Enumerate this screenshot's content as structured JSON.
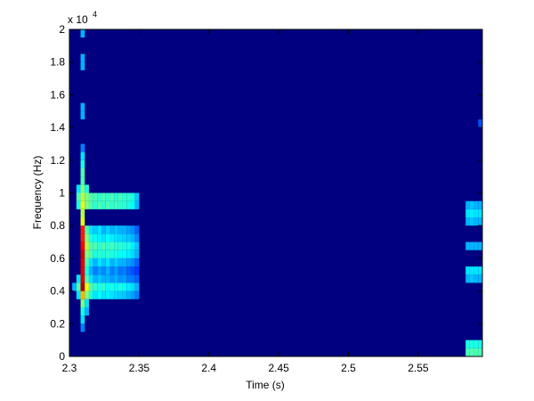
{
  "chart_data": {
    "type": "spectrogram",
    "xlabel": "Time (s)",
    "ylabel": "Frequency (Hz)",
    "y_exponent_base": "x 10",
    "y_exponent": "4",
    "xlim": [
      2.3,
      2.596
    ],
    "xticks": [
      2.3,
      2.35,
      2.4,
      2.45,
      2.5,
      2.55
    ],
    "ylim": [
      0,
      20000
    ],
    "yticks": [
      0,
      {
        "value": 2000,
        "label": "0.2"
      },
      {
        "value": 4000,
        "label": "0.4"
      },
      {
        "value": 6000,
        "label": "0.6"
      },
      {
        "value": 8000,
        "label": "0.8"
      },
      {
        "value": 10000,
        "label": "1"
      },
      {
        "value": 12000,
        "label": "1.2"
      },
      {
        "value": 14000,
        "label": "1.4"
      },
      {
        "value": 16000,
        "label": "1.6"
      },
      {
        "value": 18000,
        "label": "1.8"
      },
      {
        "value": 20000,
        "label": "2"
      }
    ],
    "zlim": [
      0,
      1
    ],
    "colormap": "jet",
    "columns": [
      {
        "x": 2.3035,
        "y": [
          4000
        ],
        "values": [
          0.3
        ]
      },
      {
        "x": 2.3065,
        "y": [
          3500,
          4000,
          4500,
          9000,
          9500,
          10000
        ],
        "values": [
          0.35,
          0.45,
          0.35,
          0.4,
          0.45,
          0.35
        ]
      },
      {
        "x": 2.3095,
        "y": [
          1500,
          2000,
          2500,
          3000,
          3500,
          4000,
          4500,
          5000,
          5500,
          6000,
          6500,
          7000,
          7500,
          8000,
          8500,
          9000,
          9500,
          10000,
          10500,
          11000,
          11500,
          12000,
          12500,
          14500,
          15000,
          17500,
          18000,
          19500
        ],
        "values": [
          0.25,
          0.35,
          0.4,
          0.5,
          0.7,
          0.95,
          0.9,
          0.9,
          0.9,
          0.92,
          0.88,
          0.85,
          0.85,
          0.6,
          0.55,
          0.6,
          0.55,
          0.5,
          0.45,
          0.45,
          0.4,
          0.35,
          0.25,
          0.3,
          0.3,
          0.3,
          0.3,
          0.3
        ]
      },
      {
        "x": 2.3125,
        "y": [
          2500,
          3000,
          3500,
          4000,
          4500,
          5000,
          5500,
          6000,
          6500,
          7000,
          7500,
          9000,
          9500,
          10000
        ],
        "values": [
          0.3,
          0.35,
          0.5,
          0.6,
          0.45,
          0.4,
          0.45,
          0.5,
          0.55,
          0.5,
          0.45,
          0.5,
          0.5,
          0.4
        ]
      },
      {
        "x": 2.3155,
        "y": [
          3500,
          4000,
          4500,
          5000,
          5500,
          6000,
          6500,
          7000,
          7500,
          9000,
          9500
        ],
        "values": [
          0.4,
          0.45,
          0.35,
          0.3,
          0.35,
          0.45,
          0.45,
          0.4,
          0.35,
          0.45,
          0.45
        ]
      },
      {
        "x": 2.3185,
        "y": [
          3500,
          4000,
          4500,
          5000,
          5500,
          6000,
          6500,
          7000,
          7500,
          9000,
          9500
        ],
        "values": [
          0.35,
          0.42,
          0.3,
          0.25,
          0.3,
          0.4,
          0.45,
          0.38,
          0.32,
          0.42,
          0.45
        ]
      },
      {
        "x": 2.3215,
        "y": [
          3500,
          4000,
          4500,
          5000,
          5500,
          6000,
          6500,
          7000,
          7500,
          9000,
          9500
        ],
        "values": [
          0.38,
          0.4,
          0.32,
          0.28,
          0.35,
          0.42,
          0.42,
          0.36,
          0.35,
          0.45,
          0.42
        ]
      },
      {
        "x": 2.3245,
        "y": [
          3500,
          4000,
          4500,
          5000,
          5500,
          6000,
          6500,
          7000,
          7500,
          9000,
          9500
        ],
        "values": [
          0.35,
          0.42,
          0.3,
          0.26,
          0.32,
          0.4,
          0.45,
          0.35,
          0.3,
          0.42,
          0.45
        ]
      },
      {
        "x": 2.3275,
        "y": [
          3500,
          4000,
          4500,
          5000,
          5500,
          6000,
          6500,
          7000,
          7500,
          9000,
          9500
        ],
        "values": [
          0.36,
          0.38,
          0.3,
          0.3,
          0.35,
          0.42,
          0.42,
          0.38,
          0.33,
          0.45,
          0.42
        ]
      },
      {
        "x": 2.3305,
        "y": [
          3500,
          4000,
          4500,
          5000,
          5500,
          6000,
          6500,
          7000,
          7500,
          9000,
          9500
        ],
        "values": [
          0.35,
          0.4,
          0.28,
          0.25,
          0.3,
          0.4,
          0.44,
          0.36,
          0.3,
          0.42,
          0.45
        ]
      },
      {
        "x": 2.3335,
        "y": [
          3500,
          4000,
          4500,
          5000,
          5500,
          6000,
          6500,
          7000,
          7500,
          9000,
          9500
        ],
        "values": [
          0.34,
          0.38,
          0.3,
          0.28,
          0.33,
          0.4,
          0.42,
          0.35,
          0.32,
          0.44,
          0.42
        ]
      },
      {
        "x": 2.3365,
        "y": [
          3500,
          4000,
          4500,
          5000,
          5500,
          6000,
          6500,
          7000,
          7500,
          9000,
          9500
        ],
        "values": [
          0.33,
          0.4,
          0.27,
          0.24,
          0.3,
          0.38,
          0.42,
          0.34,
          0.3,
          0.42,
          0.44
        ]
      },
      {
        "x": 2.3395,
        "y": [
          3500,
          4000,
          4500,
          5000,
          5500,
          6000,
          6500,
          7000,
          7500,
          9000,
          9500
        ],
        "values": [
          0.32,
          0.38,
          0.28,
          0.25,
          0.3,
          0.38,
          0.4,
          0.33,
          0.3,
          0.42,
          0.42
        ]
      },
      {
        "x": 2.3425,
        "y": [
          3500,
          4000,
          4500,
          5000,
          5500,
          6000,
          6500,
          7000,
          7500,
          9000,
          9500
        ],
        "values": [
          0.3,
          0.36,
          0.25,
          0.22,
          0.28,
          0.36,
          0.4,
          0.32,
          0.28,
          0.4,
          0.42
        ]
      },
      {
        "x": 2.3455,
        "y": [
          3500,
          4000,
          4500,
          5000,
          5500,
          6000,
          6500,
          7000,
          7500,
          9000,
          9500
        ],
        "values": [
          0.28,
          0.34,
          0.24,
          0.2,
          0.26,
          0.34,
          0.36,
          0.3,
          0.26,
          0.38,
          0.4
        ]
      },
      {
        "x": 2.3485,
        "y": [
          3500,
          4000,
          4500,
          5000,
          5500,
          6000,
          6500,
          7000,
          7500,
          9000,
          9500
        ],
        "values": [
          0.25,
          0.3,
          0.22,
          0.18,
          0.22,
          0.3,
          0.32,
          0.26,
          0.22,
          0.3,
          0.32
        ]
      },
      {
        "x": 2.5855,
        "y": [
          0,
          500,
          4500,
          5000,
          6500,
          8000,
          8500,
          9000
        ],
        "values": [
          0.45,
          0.4,
          0.3,
          0.35,
          0.3,
          0.3,
          0.35,
          0.3
        ]
      },
      {
        "x": 2.5885,
        "y": [
          0,
          500,
          4500,
          5000,
          6500,
          8000,
          8500,
          9000
        ],
        "values": [
          0.45,
          0.4,
          0.32,
          0.35,
          0.3,
          0.32,
          0.36,
          0.32
        ]
      },
      {
        "x": 2.5915,
        "y": [
          0,
          500,
          4500,
          5000,
          6500,
          8000,
          8500,
          9000
        ],
        "values": [
          0.45,
          0.4,
          0.3,
          0.35,
          0.3,
          0.3,
          0.35,
          0.3
        ]
      },
      {
        "x": 2.5945,
        "y": [
          0,
          500,
          4500,
          5000,
          6500,
          8000,
          8500,
          9000,
          14000
        ],
        "values": [
          0.45,
          0.4,
          0.3,
          0.35,
          0.3,
          0.3,
          0.35,
          0.3,
          0.2
        ]
      }
    ]
  }
}
